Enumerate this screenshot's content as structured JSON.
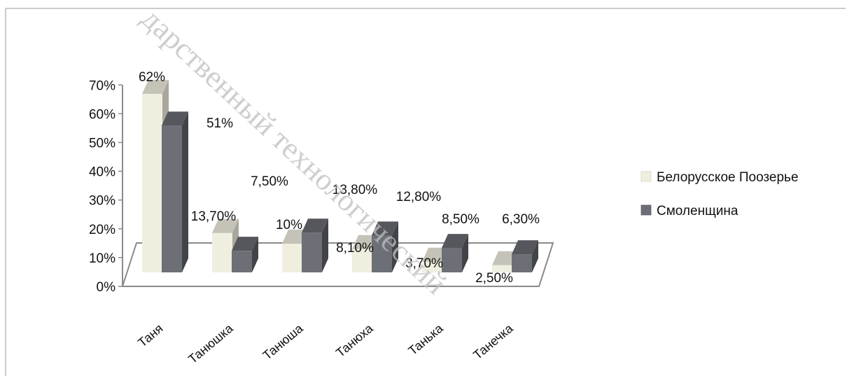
{
  "chart_data": {
    "type": "bar",
    "categories": [
      "Таня",
      "Танюшка",
      "Танюша",
      "Танюха",
      "Танька",
      "Танечка"
    ],
    "series": [
      {
        "name": "Белорусское Поозерье",
        "values": [
          62,
          13.7,
          10,
          8.1,
          3.7,
          2.5
        ],
        "labels": [
          "62%",
          "13,70%",
          "10%",
          "8,10%",
          "3,70%",
          "2,50%"
        ],
        "color": "#f0eedf"
      },
      {
        "name": "Смоленщина",
        "values": [
          51,
          7.5,
          13.8,
          12.8,
          8.5,
          6.3
        ],
        "labels": [
          "51%",
          "7,50%",
          "13,80%",
          "12,80%",
          "8,50%",
          "6,30%"
        ],
        "color": "#6d6f77"
      }
    ],
    "yticks": [
      "0%",
      "10%",
      "20%",
      "30%",
      "40%",
      "50%",
      "60%",
      "70%"
    ],
    "ylim": [
      0,
      70
    ],
    "grid": false,
    "legend": "right",
    "bar_style": "3d",
    "watermark": "дарственный технологический"
  }
}
